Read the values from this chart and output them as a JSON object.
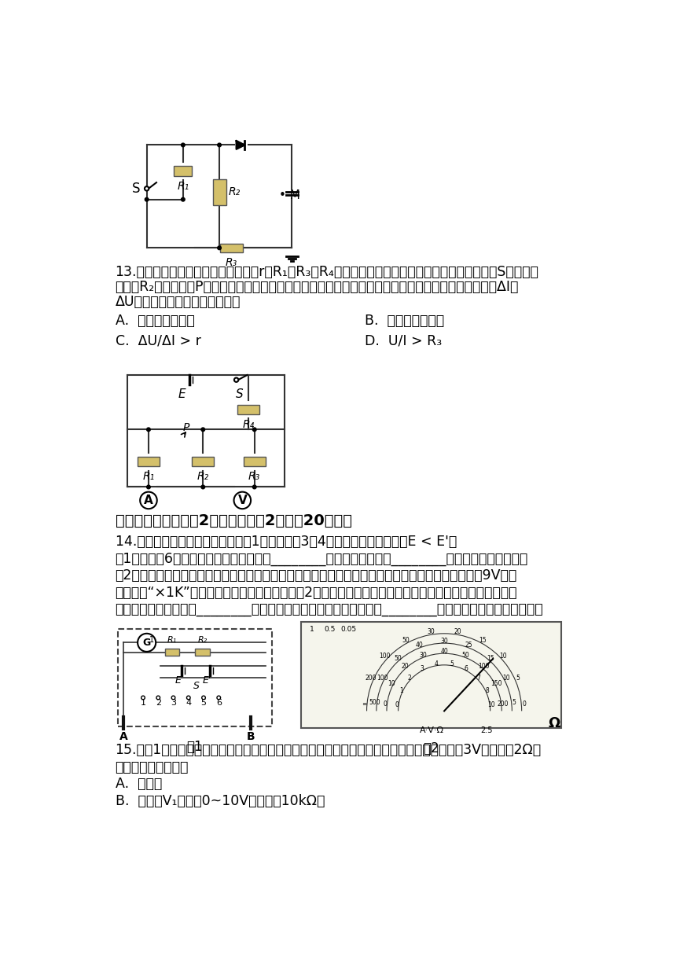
{
  "bg_color": "#ffffff",
  "q13_line1": "13.如图所示电路中，电源的内电阱为r，R₁、R₃、R₄均为定值电阱，电表均为理想电表。闭合电键S，当滑动",
  "q13_line2": "变阱器R₂的滑动触头P向右滑动时，电表的示数都发生变化，电流表和电压表的示数变化量的大小分别为ΔI、",
  "q13_line3": "ΔU，下列说法正确的是（　　）",
  "q13_A": "A.  电压表示数变大",
  "q13_B": "B.  电流表示数变小",
  "q13_C": "C.  ΔU/ΔI > r",
  "q13_D": "D.  U/I > R₃",
  "sec3_title": "三、实验题（本题共2个小题，每穲2分，入20分。）",
  "q14_line1": "14.多用电表内部的部分电路图如图1所示。已知3、4两档中的两电源电动勽E < E'。",
  "q14_line2": "（1）图中的6个档位中，大量程电流档是________，高倍率欧姆档是________。（均填写档位序号）",
  "q14_line3": "（2）某探究小组欲利用多用电表的欧姆档粗测一电压表的内阱和量程，已知多用电表内电源电动勽为9V，所",
  "q14_line4": "用挡位为“×1K”挡，调零后测量，指针位置如图2所示。此时待测电压表指针指在表盘的四分之三刻度处。",
  "q14_line5": "则所测电压表内阱约为________（结果保留两位有效数字），量程为________（结果保留一位有效数字）。",
  "q15_line1": "15.如图1所示为某兴趣小组测量电池组的电动势和内阱的实验原理图，已知电池组的电动势剙3V，内阱剙2Ω。",
  "q15_line2": "现提供的器材如下：",
  "q15_A": "A.  电池组",
  "q15_B": "B.  电压表V₁（量程0~10V，内阱剆10kΩ）",
  "fig1_label": "图1",
  "fig2_label": "图2"
}
